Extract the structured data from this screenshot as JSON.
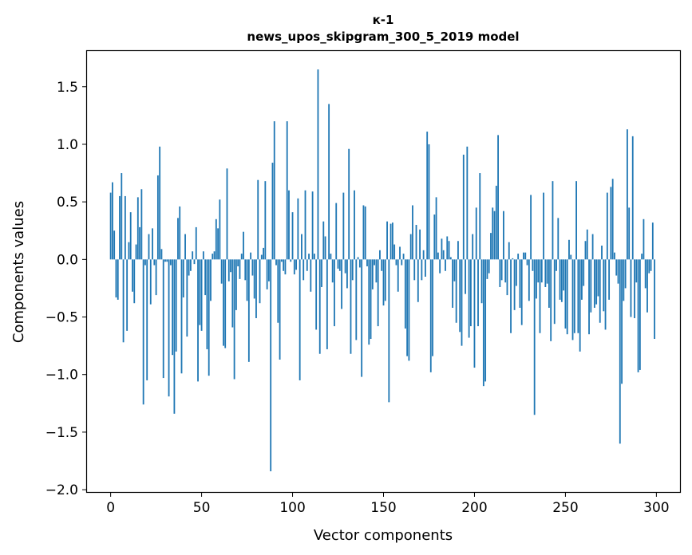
{
  "chart_data": {
    "type": "bar",
    "title": "к-1",
    "subtitle": "news_upos_skipgram_300_5_2019 model",
    "xlabel": "Vector components",
    "ylabel": "Components values",
    "xlim": [
      -13,
      313
    ],
    "ylim": [
      -2.02,
      1.81
    ],
    "xticks": [
      0,
      50,
      100,
      150,
      200,
      250,
      300
    ],
    "yticks": [
      -2.0,
      -1.5,
      -1.0,
      -0.5,
      0.0,
      0.5,
      1.0,
      1.5
    ],
    "ytick_labels": [
      "−2.0",
      "−1.5",
      "−1.0",
      "−0.5",
      "0.0",
      "0.5",
      "1.0",
      "1.5"
    ],
    "bar_color": "#1f77b4",
    "values": [
      0.58,
      0.67,
      0.25,
      -0.33,
      -0.35,
      0.55,
      0.75,
      -0.72,
      0.55,
      -0.62,
      0.15,
      0.41,
      -0.28,
      -0.38,
      0.13,
      0.54,
      0.28,
      0.61,
      -1.26,
      -0.05,
      -1.05,
      0.22,
      -0.39,
      0.27,
      -0.05,
      -0.31,
      0.73,
      0.98,
      0.09,
      -1.03,
      -0.02,
      -0.02,
      -1.19,
      -0.05,
      -0.83,
      -1.34,
      -0.8,
      0.36,
      0.46,
      -0.99,
      -0.33,
      0.22,
      -0.67,
      -0.14,
      -0.1,
      0.07,
      -0.04,
      0.28,
      -1.06,
      -0.57,
      -0.62,
      0.07,
      -0.31,
      -0.78,
      -1.01,
      -0.36,
      0.05,
      0.07,
      0.35,
      0.27,
      0.52,
      -0.21,
      -0.75,
      -0.77,
      0.79,
      -0.19,
      -0.11,
      -0.59,
      -1.04,
      -0.44,
      -0.06,
      -0.17,
      0.05,
      0.24,
      -0.18,
      -0.36,
      -0.89,
      0.06,
      -0.14,
      -0.34,
      -0.51,
      0.69,
      -0.38,
      0.04,
      0.1,
      0.68,
      -0.26,
      -0.19,
      -1.84,
      0.84,
      1.2,
      -0.05,
      -0.55,
      -0.87,
      -0.02,
      -0.1,
      -0.13,
      1.2,
      0.6,
      -0.02,
      0.41,
      -0.13,
      -0.09,
      0.53,
      -1.05,
      0.22,
      -0.18,
      0.6,
      -0.1,
      0.05,
      -0.28,
      0.59,
      0.05,
      -0.61,
      1.65,
      -0.82,
      -0.24,
      0.33,
      0.2,
      -0.78,
      1.35,
      0.05,
      -0.2,
      -0.58,
      0.49,
      -0.08,
      -0.1,
      -0.43,
      0.58,
      -0.12,
      -0.25,
      0.96,
      -0.82,
      -0.18,
      0.6,
      -0.7,
      0.02,
      -0.07,
      -1.02,
      0.47,
      0.46,
      -0.06,
      -0.74,
      -0.69,
      -0.26,
      -0.05,
      -0.2,
      -0.58,
      0.08,
      -0.1,
      -0.4,
      -0.36,
      0.33,
      -1.24,
      0.31,
      0.32,
      0.13,
      -0.05,
      -0.28,
      0.11,
      -0.05,
      0.05,
      -0.6,
      -0.84,
      -0.88,
      0.22,
      0.47,
      -0.18,
      0.3,
      -0.37,
      0.26,
      -0.18,
      0.08,
      -0.15,
      1.11,
      1.0,
      -0.98,
      -0.84,
      0.39,
      0.54,
      0.06,
      -0.12,
      0.18,
      0.08,
      -0.1,
      0.2,
      0.16,
      0.02,
      -0.42,
      -0.19,
      -0.55,
      0.16,
      -0.63,
      -0.75,
      0.91,
      -0.3,
      0.98,
      -0.68,
      -0.58,
      0.22,
      -0.94,
      0.45,
      -0.58,
      0.75,
      -0.38,
      -1.1,
      -1.06,
      -0.17,
      -0.12,
      0.23,
      0.45,
      0.42,
      0.64,
      1.08,
      -0.24,
      -0.18,
      0.42,
      -0.2,
      -0.31,
      0.15,
      -0.64,
      0.01,
      -0.44,
      -0.23,
      0.05,
      -0.42,
      -0.57,
      0.06,
      0.06,
      -0.05,
      -0.36,
      0.56,
      -0.1,
      -1.35,
      -0.34,
      -0.2,
      -0.64,
      -0.2,
      0.58,
      -0.24,
      -0.21,
      -0.42,
      -0.71,
      0.68,
      -0.56,
      -0.1,
      0.36,
      -0.35,
      -0.37,
      -0.27,
      -0.6,
      -0.65,
      0.17,
      0.04,
      -0.7,
      -0.64,
      0.68,
      -0.64,
      -0.8,
      -0.35,
      -0.23,
      0.16,
      0.26,
      -0.65,
      -0.46,
      0.22,
      -0.42,
      -0.39,
      -0.32,
      -0.55,
      0.12,
      -0.45,
      -0.61,
      0.58,
      -0.35,
      0.63,
      0.7,
      0.06,
      -0.14,
      -0.21,
      -1.6,
      -1.08,
      -0.36,
      -0.25,
      1.13,
      0.45,
      -0.5,
      1.07,
      -0.51,
      -0.2,
      -0.98,
      -0.96,
      0.05,
      0.35,
      -0.25,
      -0.46,
      -0.12,
      -0.1,
      0.32,
      -0.69
    ]
  }
}
